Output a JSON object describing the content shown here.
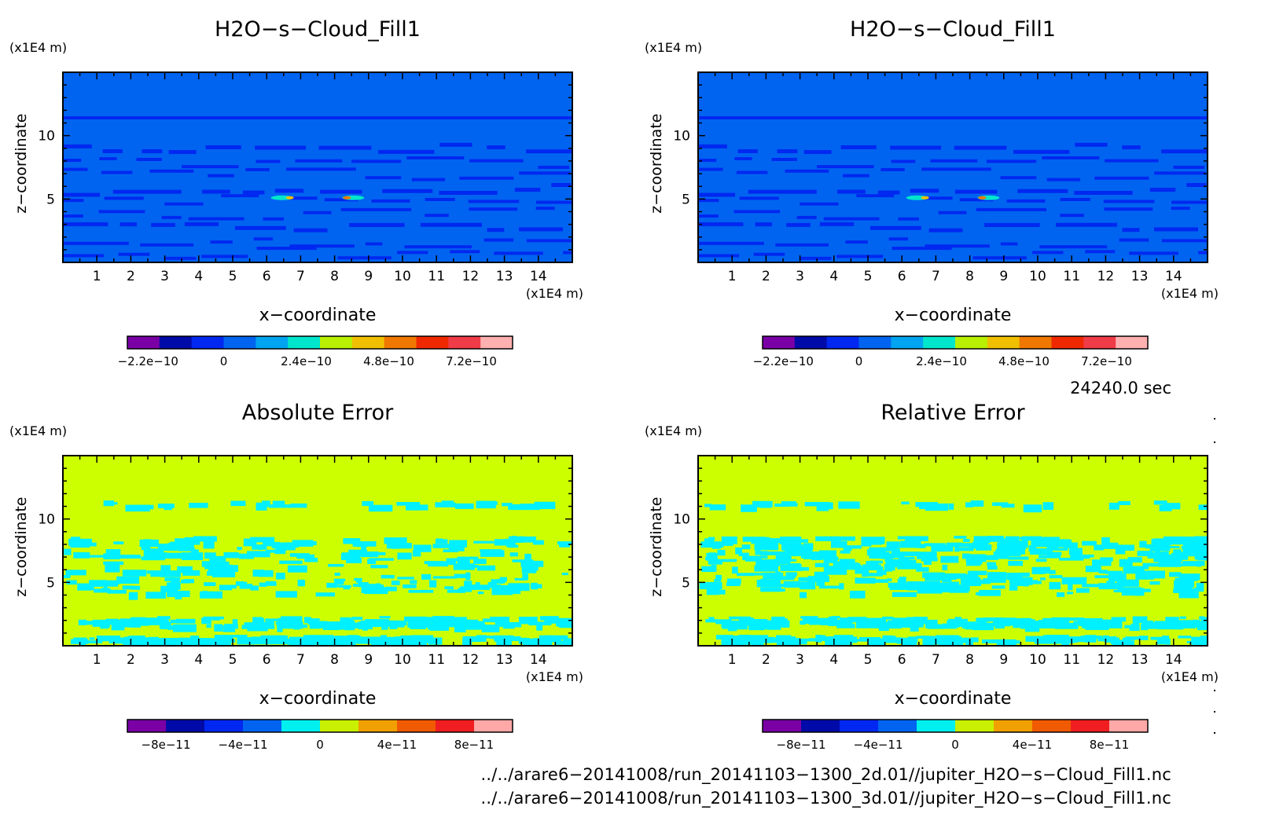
{
  "colors": {
    "field_scale": [
      "#7a00a6",
      "#000aa8",
      "#0028f0",
      "#0064f0",
      "#00a4f0",
      "#00e6cc",
      "#b8f000",
      "#f0c000",
      "#f07800",
      "#f02800",
      "#f03c48",
      "#ffb0b0"
    ],
    "error_scale": [
      "#7a00a6",
      "#000aa8",
      "#0028f0",
      "#0064f0",
      "#00f0f0",
      "#c8f000",
      "#f0a000",
      "#f05a00",
      "#f01e20",
      "#ffa8a8"
    ],
    "field_background": "#0064f0",
    "field_bands": "#0028f0",
    "error_background": "#ccff00",
    "error_patches": "#00f0ff"
  },
  "axis_text": {
    "xlabel": "x−coordinate",
    "ylabel": "z−coordinate",
    "x_unit": "(x1E4 m)",
    "y_unit": "(x1E4 m)"
  },
  "chart_data": [
    {
      "type": "heatmap",
      "title": "H2O−s−Cloud_Fill1",
      "xlabel": "x−coordinate",
      "ylabel": "z−coordinate",
      "x_unit": "(x1E4 m)",
      "y_unit": "(x1E4 m)",
      "xlim": [
        0,
        15
      ],
      "ylim": [
        0,
        15
      ],
      "xticks": [
        "1",
        "2",
        "3",
        "4",
        "5",
        "6",
        "7",
        "8",
        "9",
        "10",
        "11",
        "12",
        "13",
        "14"
      ],
      "yticks": [
        "5",
        "10"
      ],
      "colorbar": {
        "min": -2.8e-10,
        "max": 8.4e-10,
        "levels": 12,
        "ticks": [
          "−2.2e−10",
          "0",
          "2.4e−10",
          "4.8e−10",
          "7.2e−10"
        ],
        "tick_values": [
          -2.2e-10,
          0,
          2.4e-10,
          4.8e-10,
          7.2e-10
        ]
      },
      "pattern": "field"
    },
    {
      "type": "heatmap",
      "title": "H2O−s−Cloud_Fill1",
      "xlabel": "x−coordinate",
      "ylabel": "z−coordinate",
      "x_unit": "(x1E4 m)",
      "y_unit": "(x1E4 m)",
      "xlim": [
        0,
        15
      ],
      "ylim": [
        0,
        15
      ],
      "xticks": [
        "1",
        "2",
        "3",
        "4",
        "5",
        "6",
        "7",
        "8",
        "9",
        "10",
        "11",
        "12",
        "13",
        "14"
      ],
      "yticks": [
        "5",
        "10"
      ],
      "colorbar": {
        "min": -2.8e-10,
        "max": 8.4e-10,
        "levels": 12,
        "ticks": [
          "−2.2e−10",
          "0",
          "2.4e−10",
          "4.8e−10",
          "7.2e−10"
        ],
        "tick_values": [
          -2.2e-10,
          0,
          2.4e-10,
          4.8e-10,
          7.2e-10
        ]
      },
      "pattern": "field"
    },
    {
      "type": "heatmap",
      "title": "Absolute Error",
      "xlabel": "x−coordinate",
      "ylabel": "z−coordinate",
      "x_unit": "(x1E4 m)",
      "y_unit": "(x1E4 m)",
      "xlim": [
        0,
        15
      ],
      "ylim": [
        0,
        15
      ],
      "xticks": [
        "1",
        "2",
        "3",
        "4",
        "5",
        "6",
        "7",
        "8",
        "9",
        "10",
        "11",
        "12",
        "13",
        "14"
      ],
      "yticks": [
        "5",
        "10"
      ],
      "colorbar": {
        "min": -1e-10,
        "max": 1e-10,
        "levels": 10,
        "ticks": [
          "−8e−11",
          "−4e−11",
          "0",
          "4e−11",
          "8e−11"
        ],
        "tick_values": [
          -8e-11,
          -4e-11,
          0,
          4e-11,
          8e-11
        ]
      },
      "pattern": "error_abs"
    },
    {
      "type": "heatmap",
      "title": "Relative Error",
      "xlabel": "x−coordinate",
      "ylabel": "z−coordinate",
      "x_unit": "(x1E4 m)",
      "y_unit": "(x1E4 m)",
      "xlim": [
        0,
        15
      ],
      "ylim": [
        0,
        15
      ],
      "xticks": [
        "1",
        "2",
        "3",
        "4",
        "5",
        "6",
        "7",
        "8",
        "9",
        "10",
        "11",
        "12",
        "13",
        "14"
      ],
      "yticks": [
        "5",
        "10"
      ],
      "colorbar": {
        "min": -1e-10,
        "max": 1e-10,
        "levels": 10,
        "ticks": [
          "−8e−11",
          "−4e−11",
          "0",
          "4e−11",
          "8e−11"
        ],
        "tick_values": [
          -8e-11,
          -4e-11,
          0,
          4e-11,
          8e-11
        ]
      },
      "pattern": "error_rel"
    }
  ],
  "timestamp": "24240.0 sec",
  "files": [
    "../../arare6−20141008/run_20141103−1300_2d.01//jupiter_H2O−s−Cloud_Fill1.nc",
    "../../arare6−20141008/run_20141103−1300_3d.01//jupiter_H2O−s−Cloud_Fill1.nc"
  ]
}
